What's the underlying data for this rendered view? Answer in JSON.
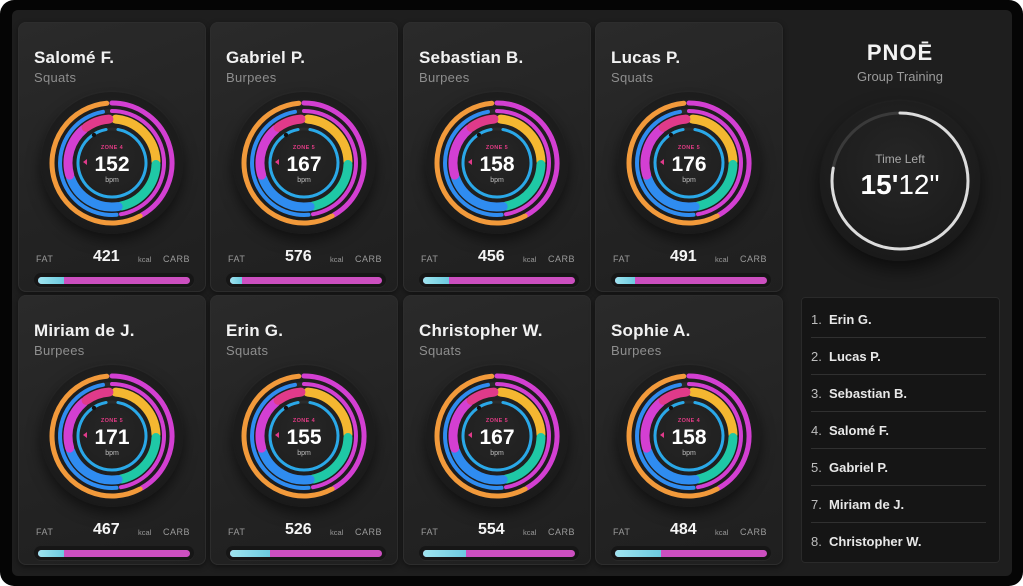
{
  "brand": "PNOĒ",
  "subtitle": "Group Training",
  "timer": {
    "label": "Time Left",
    "minutes": "15'",
    "seconds": "12\"",
    "remaining_fraction": 0.78
  },
  "labels": {
    "fat": "FAT",
    "carb": "CARB",
    "kcal": "kcal",
    "bpm": "bpm"
  },
  "colors": {
    "zone_text": "#e23b85",
    "carb_bar": "#cc4fc0",
    "fat_bar": "#8edbe9",
    "ring_magenta": "#d33fd2",
    "ring_orange": "#f29a3b",
    "ring_yellow": "#f4b731",
    "ring_teal": "#1fc8a6",
    "ring_blue": "#2f8cf0",
    "ring_pink": "#e03a8a"
  },
  "athletes": [
    {
      "name": "Salomé F.",
      "exercise": "Squats",
      "zone": "ZONE 4",
      "bpm": "152",
      "kcal": "421",
      "fat_fraction": 0.17
    },
    {
      "name": "Gabriel P.",
      "exercise": "Burpees",
      "zone": "ZONE 5",
      "bpm": "167",
      "kcal": "576",
      "fat_fraction": 0.08
    },
    {
      "name": "Sebastian B.",
      "exercise": "Burpees",
      "zone": "ZONE 5",
      "bpm": "158",
      "kcal": "456",
      "fat_fraction": 0.17
    },
    {
      "name": "Lucas P.",
      "exercise": "Squats",
      "zone": "ZONE 5",
      "bpm": "176",
      "kcal": "491",
      "fat_fraction": 0.13
    },
    {
      "name": "Miriam de J.",
      "exercise": "Burpees",
      "zone": "ZONE 5",
      "bpm": "171",
      "kcal": "467",
      "fat_fraction": 0.17
    },
    {
      "name": "Erin G.",
      "exercise": "Squats",
      "zone": "ZONE 4",
      "bpm": "155",
      "kcal": "526",
      "fat_fraction": 0.26
    },
    {
      "name": "Christopher W.",
      "exercise": "Squats",
      "zone": "ZONE 5",
      "bpm": "167",
      "kcal": "554",
      "fat_fraction": 0.28
    },
    {
      "name": "Sophie A.",
      "exercise": "Burpees",
      "zone": "ZONE 4",
      "bpm": "158",
      "kcal": "484",
      "fat_fraction": 0.3
    }
  ],
  "leaderboard": [
    {
      "rank": "1.",
      "name": "Erin G."
    },
    {
      "rank": "2.",
      "name": "Lucas P."
    },
    {
      "rank": "3.",
      "name": "Sebastian B."
    },
    {
      "rank": "4.",
      "name": "Salomé F."
    },
    {
      "rank": "5.",
      "name": "Gabriel P."
    },
    {
      "rank": "7.",
      "name": "Miriam de J."
    },
    {
      "rank": "8.",
      "name": "Christopher W."
    }
  ]
}
